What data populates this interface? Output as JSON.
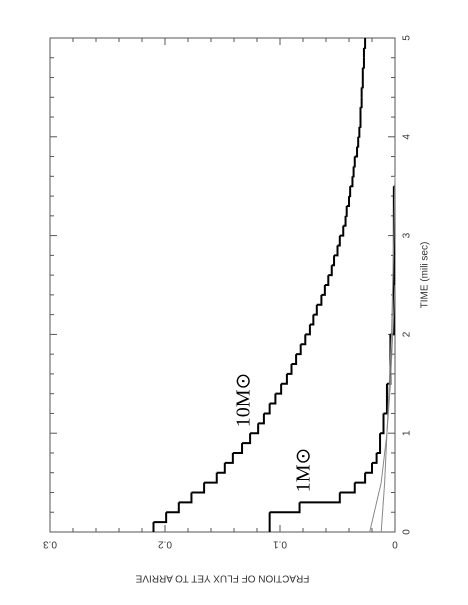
{
  "chart_data": {
    "type": "line",
    "xlabel": "TIME (mili sec)",
    "ylabel": "FRACTION OF FLUX YET TO ARRIVE",
    "xlim": [
      0,
      5
    ],
    "xticks": [
      0,
      1,
      2,
      3,
      4,
      5
    ],
    "ylim": [
      0,
      0.3
    ],
    "yticks": [
      0,
      0.1,
      0.2,
      0.3
    ],
    "annotations": [
      "10M⊙",
      "1M⊙"
    ],
    "series": [
      {
        "step": true,
        "color": "#000000",
        "x": [
          0,
          0.1,
          0.2,
          0.3,
          0.4,
          0.5,
          0.6,
          0.7,
          0.8,
          0.9,
          1.0,
          1.1,
          1.2,
          1.3,
          1.4,
          1.5,
          1.6,
          1.7,
          1.8,
          1.9,
          2.0,
          2.1,
          2.2,
          2.3,
          2.4,
          2.5,
          2.6,
          2.7,
          2.8,
          2.9,
          3.0,
          3.1,
          3.2,
          3.3,
          3.4,
          3.5,
          3.6,
          3.7,
          3.8,
          3.9,
          4.0,
          4.1,
          4.2,
          4.3,
          4.4,
          4.5,
          4.6,
          4.7,
          4.8,
          4.9,
          5.0
        ],
        "values": [
          0.21,
          0.199,
          0.188,
          0.177,
          0.166,
          0.155,
          0.148,
          0.141,
          0.133,
          0.126,
          0.119,
          0.114,
          0.109,
          0.104,
          0.099,
          0.094,
          0.09,
          0.086,
          0.082,
          0.078,
          0.074,
          0.071,
          0.068,
          0.064,
          0.061,
          0.058,
          0.055,
          0.053,
          0.05,
          0.048,
          0.045,
          0.043,
          0.042,
          0.04,
          0.039,
          0.037,
          0.036,
          0.035,
          0.033,
          0.032,
          0.031,
          0.03,
          0.03,
          0.029,
          0.029,
          0.028,
          0.028,
          0.027,
          0.027,
          0.026,
          0.026
        ]
      },
      {
        "step": true,
        "color": "#000000",
        "x": [
          0,
          0.2,
          0.3,
          0.4,
          0.5,
          0.6,
          0.7,
          0.8,
          1.0,
          1.2,
          1.5,
          2.0,
          3.5
        ],
        "values": [
          0.109,
          0.083,
          0.048,
          0.035,
          0.026,
          0.02,
          0.016,
          0.013,
          0.01,
          0.007,
          0.004,
          0.001,
          0
        ]
      },
      {
        "step": false,
        "color": "#888888",
        "x": [
          0,
          0.5,
          1,
          1.5,
          2,
          2.5
        ],
        "values": [
          0.022,
          0.012,
          0.007,
          0.004,
          0.002,
          0
        ]
      },
      {
        "step": false,
        "color": "#888888",
        "x": [
          0,
          0.5,
          1,
          1.5,
          2,
          2.5,
          3,
          3.6
        ],
        "values": [
          0.012,
          0.009,
          0.007,
          0.005,
          0.003,
          0.002,
          0.001,
          0
        ]
      }
    ]
  }
}
